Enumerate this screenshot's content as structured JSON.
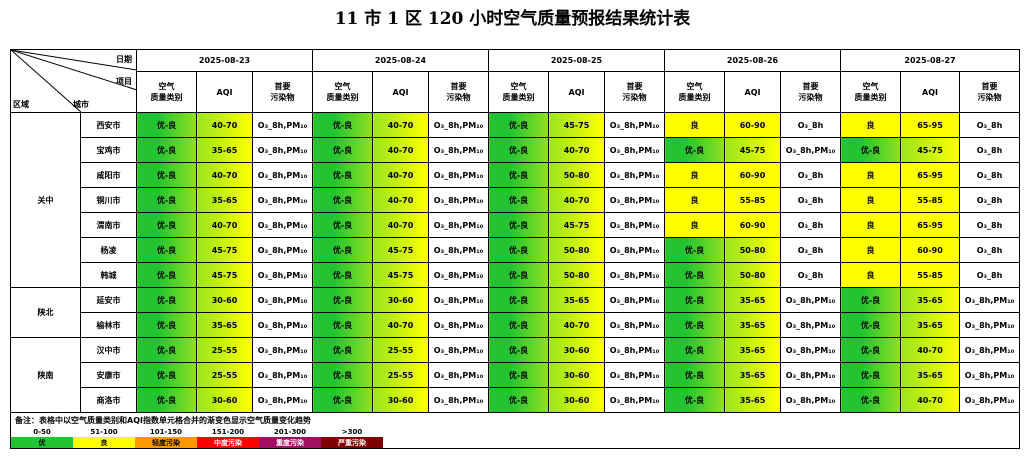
{
  "title": "11 市 1 区 120 小时空气质量预报结果统计表",
  "header": {
    "date_label": "日期",
    "item_label": "项目",
    "region_label": "区域",
    "city_label": "城市",
    "sub_labels": {
      "category_l1": "空气",
      "category_l2": "质量类别",
      "aqi": "AQI",
      "pollutant_l1": "首要",
      "pollutant_l2": "污染物"
    },
    "dates": [
      "2025-08-23",
      "2025-08-24",
      "2025-08-25",
      "2025-08-26",
      "2025-08-27"
    ]
  },
  "colors": {
    "good_green": "#22c431",
    "good_yellow": "#ffff00",
    "light": "#ff9900",
    "moderate": "#ff0000",
    "heavy": "#a01060",
    "severe": "#800000"
  },
  "regions": [
    {
      "name": "关中",
      "rows": [
        {
          "city": "西安市",
          "days": [
            {
              "cat": "优-良",
              "aqi": "40-70",
              "p": "O₃_8h,PM₁₀"
            },
            {
              "cat": "优-良",
              "aqi": "40-70",
              "p": "O₃_8h,PM₁₀"
            },
            {
              "cat": "优-良",
              "aqi": "45-75",
              "p": "O₃_8h,PM₁₀"
            },
            {
              "cat": "良",
              "aqi": "60-90",
              "p": "O₃_8h"
            },
            {
              "cat": "良",
              "aqi": "65-95",
              "p": "O₃_8h"
            }
          ]
        },
        {
          "city": "宝鸡市",
          "days": [
            {
              "cat": "优-良",
              "aqi": "35-65",
              "p": "O₃_8h,PM₁₀"
            },
            {
              "cat": "优-良",
              "aqi": "40-70",
              "p": "O₃_8h,PM₁₀"
            },
            {
              "cat": "优-良",
              "aqi": "40-70",
              "p": "O₃_8h,PM₁₀"
            },
            {
              "cat": "优-良",
              "aqi": "45-75",
              "p": "O₃_8h,PM₁₀"
            },
            {
              "cat": "优-良",
              "aqi": "45-75",
              "p": "O₃_8h"
            }
          ]
        },
        {
          "city": "咸阳市",
          "days": [
            {
              "cat": "优-良",
              "aqi": "40-70",
              "p": "O₃_8h,PM₁₀"
            },
            {
              "cat": "优-良",
              "aqi": "40-70",
              "p": "O₃_8h,PM₁₀"
            },
            {
              "cat": "优-良",
              "aqi": "50-80",
              "p": "O₃_8h,PM₁₀"
            },
            {
              "cat": "良",
              "aqi": "60-90",
              "p": "O₃_8h"
            },
            {
              "cat": "良",
              "aqi": "65-95",
              "p": "O₃_8h"
            }
          ]
        },
        {
          "city": "铜川市",
          "days": [
            {
              "cat": "优-良",
              "aqi": "35-65",
              "p": "O₃_8h,PM₁₀"
            },
            {
              "cat": "优-良",
              "aqi": "40-70",
              "p": "O₃_8h,PM₁₀"
            },
            {
              "cat": "优-良",
              "aqi": "40-70",
              "p": "O₃_8h,PM₁₀"
            },
            {
              "cat": "良",
              "aqi": "55-85",
              "p": "O₃_8h"
            },
            {
              "cat": "良",
              "aqi": "55-85",
              "p": "O₃_8h"
            }
          ]
        },
        {
          "city": "渭南市",
          "days": [
            {
              "cat": "优-良",
              "aqi": "40-70",
              "p": "O₃_8h,PM₁₀"
            },
            {
              "cat": "优-良",
              "aqi": "40-70",
              "p": "O₃_8h,PM₁₀"
            },
            {
              "cat": "优-良",
              "aqi": "45-75",
              "p": "O₃_8h,PM₁₀"
            },
            {
              "cat": "良",
              "aqi": "60-90",
              "p": "O₃_8h"
            },
            {
              "cat": "良",
              "aqi": "65-95",
              "p": "O₃_8h"
            }
          ]
        },
        {
          "city": "杨凌",
          "days": [
            {
              "cat": "优-良",
              "aqi": "45-75",
              "p": "O₃_8h,PM₁₀"
            },
            {
              "cat": "优-良",
              "aqi": "45-75",
              "p": "O₃_8h,PM₁₀"
            },
            {
              "cat": "优-良",
              "aqi": "50-80",
              "p": "O₃_8h,PM₁₀"
            },
            {
              "cat": "优-良",
              "aqi": "50-80",
              "p": "O₃_8h"
            },
            {
              "cat": "良",
              "aqi": "60-90",
              "p": "O₃_8h"
            }
          ]
        },
        {
          "city": "韩城",
          "days": [
            {
              "cat": "优-良",
              "aqi": "45-75",
              "p": "O₃_8h,PM₁₀"
            },
            {
              "cat": "优-良",
              "aqi": "45-75",
              "p": "O₃_8h,PM₁₀"
            },
            {
              "cat": "优-良",
              "aqi": "50-80",
              "p": "O₃_8h,PM₁₀"
            },
            {
              "cat": "优-良",
              "aqi": "50-80",
              "p": "O₃_8h"
            },
            {
              "cat": "良",
              "aqi": "55-85",
              "p": "O₃_8h"
            }
          ]
        }
      ]
    },
    {
      "name": "陕北",
      "rows": [
        {
          "city": "延安市",
          "days": [
            {
              "cat": "优-良",
              "aqi": "30-60",
              "p": "O₃_8h,PM₁₀"
            },
            {
              "cat": "优-良",
              "aqi": "30-60",
              "p": "O₃_8h,PM₁₀"
            },
            {
              "cat": "优-良",
              "aqi": "35-65",
              "p": "O₃_8h,PM₁₀"
            },
            {
              "cat": "优-良",
              "aqi": "35-65",
              "p": "O₃_8h,PM₁₀"
            },
            {
              "cat": "优-良",
              "aqi": "35-65",
              "p": "O₃_8h,PM₁₀"
            }
          ]
        },
        {
          "city": "榆林市",
          "days": [
            {
              "cat": "优-良",
              "aqi": "35-65",
              "p": "O₃_8h,PM₁₀"
            },
            {
              "cat": "优-良",
              "aqi": "40-70",
              "p": "O₃_8h,PM₁₀"
            },
            {
              "cat": "优-良",
              "aqi": "40-70",
              "p": "O₃_8h,PM₁₀"
            },
            {
              "cat": "优-良",
              "aqi": "35-65",
              "p": "O₃_8h,PM₁₀"
            },
            {
              "cat": "优-良",
              "aqi": "35-65",
              "p": "O₃_8h,PM₁₀"
            }
          ]
        }
      ]
    },
    {
      "name": "陕南",
      "rows": [
        {
          "city": "汉中市",
          "days": [
            {
              "cat": "优-良",
              "aqi": "25-55",
              "p": "O₃_8h,PM₁₀"
            },
            {
              "cat": "优-良",
              "aqi": "25-55",
              "p": "O₃_8h,PM₁₀"
            },
            {
              "cat": "优-良",
              "aqi": "30-60",
              "p": "O₃_8h,PM₁₀"
            },
            {
              "cat": "优-良",
              "aqi": "35-65",
              "p": "O₃_8h,PM₁₀"
            },
            {
              "cat": "优-良",
              "aqi": "40-70",
              "p": "O₃_8h,PM₁₀"
            }
          ]
        },
        {
          "city": "安康市",
          "days": [
            {
              "cat": "优-良",
              "aqi": "25-55",
              "p": "O₃_8h,PM₁₀"
            },
            {
              "cat": "优-良",
              "aqi": "25-55",
              "p": "O₃_8h,PM₁₀"
            },
            {
              "cat": "优-良",
              "aqi": "30-60",
              "p": "O₃_8h,PM₁₀"
            },
            {
              "cat": "优-良",
              "aqi": "35-65",
              "p": "O₃_8h,PM₁₀"
            },
            {
              "cat": "优-良",
              "aqi": "35-65",
              "p": "O₃_8h,PM₁₀"
            }
          ]
        },
        {
          "city": "商洛市",
          "days": [
            {
              "cat": "优-良",
              "aqi": "30-60",
              "p": "O₃_8h,PM₁₀"
            },
            {
              "cat": "优-良",
              "aqi": "30-60",
              "p": "O₃_8h,PM₁₀"
            },
            {
              "cat": "优-良",
              "aqi": "30-60",
              "p": "O₃_8h,PM₁₀"
            },
            {
              "cat": "优-良",
              "aqi": "35-65",
              "p": "O₃_8h,PM₁₀"
            },
            {
              "cat": "优-良",
              "aqi": "40-70",
              "p": "O₃_8h,PM₁₀"
            }
          ]
        }
      ]
    }
  ],
  "note": "备注：表格中以空气质量类别和AQI指数单元格合并的渐变色显示空气质量变化趋势",
  "legend": [
    {
      "range": "0-50",
      "label": "优",
      "color": "#22c431",
      "text_color": "#000000"
    },
    {
      "range": "51-100",
      "label": "良",
      "color": "#ffff00",
      "text_color": "#000000"
    },
    {
      "range": "101-150",
      "label": "轻度污染",
      "color": "#ff9900",
      "text_color": "#000000"
    },
    {
      "range": "151-200",
      "label": "中度污染",
      "color": "#ff0000",
      "text_color": "#ffffff"
    },
    {
      "range": "201-300",
      "label": "重度污染",
      "color": "#a01060",
      "text_color": "#ffffff"
    },
    {
      "range": ">300",
      "label": "严重污染",
      "color": "#800000",
      "text_color": "#ffffff"
    }
  ]
}
